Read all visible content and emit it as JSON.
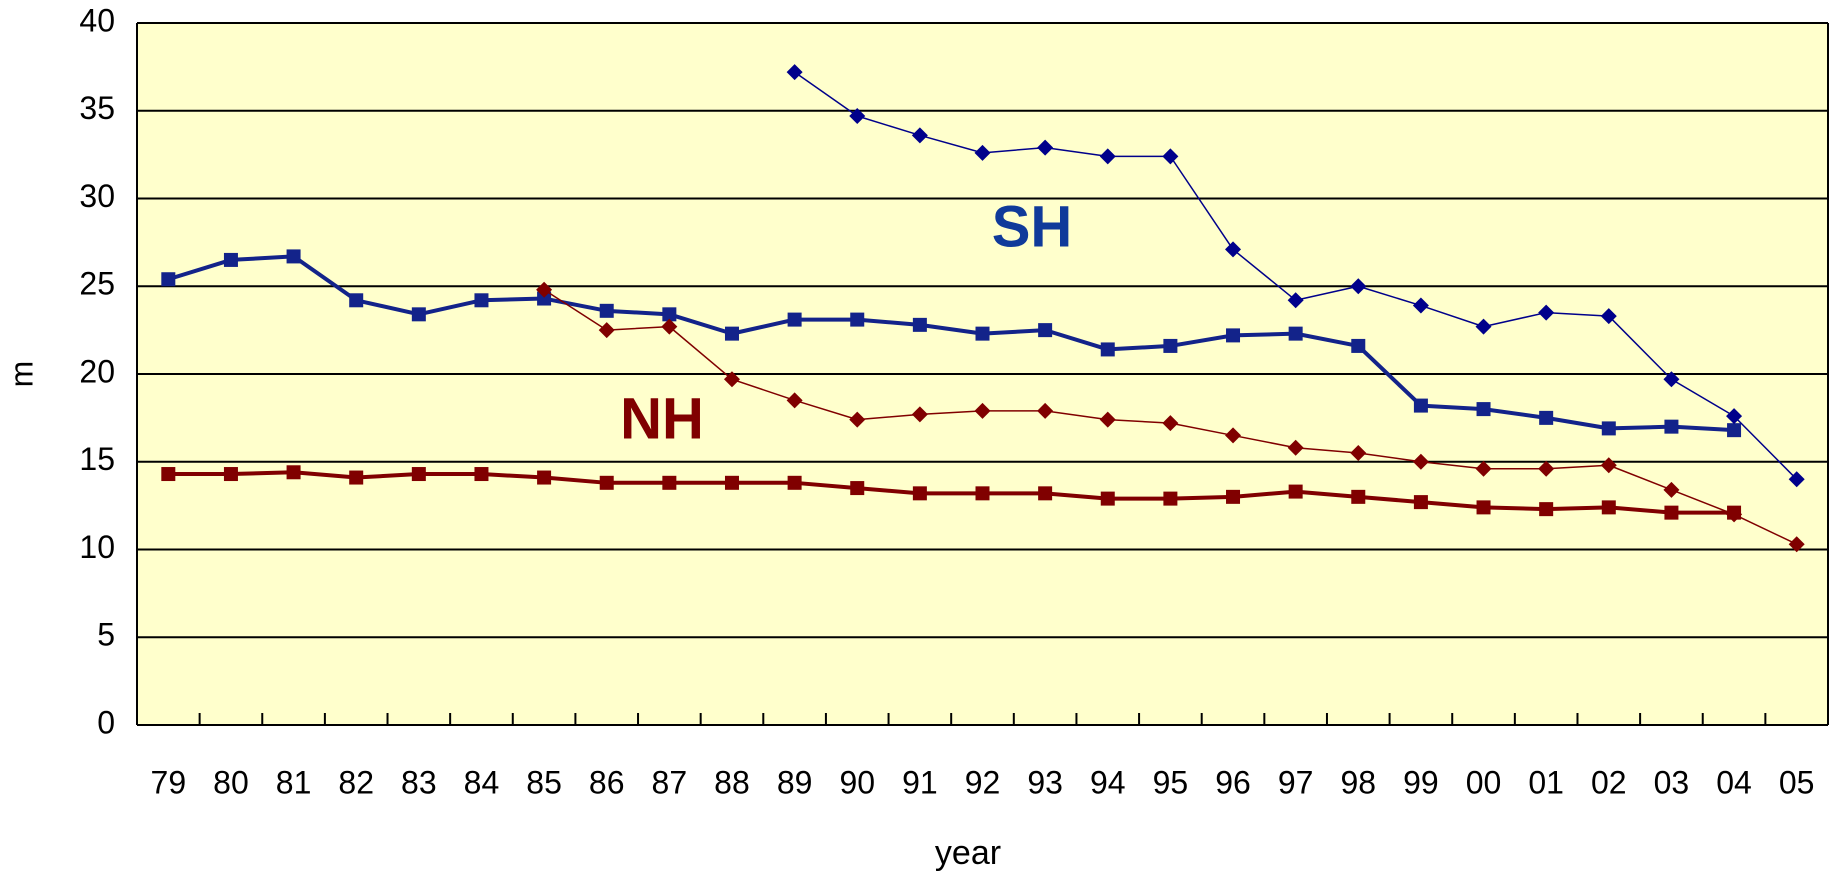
{
  "chart_data": {
    "type": "line",
    "x_label": "year",
    "y_label": "m",
    "categories": [
      "79",
      "80",
      "81",
      "82",
      "83",
      "84",
      "85",
      "86",
      "87",
      "88",
      "89",
      "90",
      "91",
      "92",
      "93",
      "94",
      "95",
      "96",
      "97",
      "98",
      "99",
      "00",
      "01",
      "02",
      "03",
      "04",
      "05"
    ],
    "ylim": [
      0,
      40
    ],
    "yticks": [
      0,
      5,
      10,
      15,
      20,
      25,
      30,
      35,
      40
    ],
    "grid": true,
    "background": "#ffffcc",
    "series": [
      {
        "color": "#13238a",
        "marker": "square",
        "line_width": 4,
        "values": [
          25.4,
          26.5,
          26.7,
          24.2,
          23.4,
          24.2,
          24.3,
          23.6,
          23.4,
          22.3,
          23.1,
          23.1,
          22.8,
          22.3,
          22.5,
          21.4,
          21.6,
          22.2,
          22.3,
          21.6,
          18.2,
          18.0,
          17.5,
          16.9,
          17.0,
          16.8,
          null
        ]
      },
      {
        "color": "#00008b",
        "marker": "diamond",
        "line_width": 1.5,
        "values": [
          null,
          null,
          null,
          null,
          null,
          null,
          null,
          null,
          null,
          null,
          37.2,
          34.7,
          33.6,
          32.6,
          32.9,
          32.4,
          32.4,
          27.1,
          24.2,
          25.0,
          23.9,
          22.7,
          23.5,
          23.3,
          19.7,
          17.6,
          14.0
        ]
      },
      {
        "color": "#800000",
        "marker": "diamond",
        "line_width": 1.5,
        "values": [
          null,
          null,
          null,
          null,
          null,
          null,
          24.8,
          22.5,
          22.7,
          19.7,
          18.5,
          17.4,
          17.7,
          17.9,
          17.9,
          17.4,
          17.2,
          16.5,
          15.8,
          15.5,
          15.0,
          14.6,
          14.6,
          14.8,
          13.4,
          12.0,
          10.3
        ]
      },
      {
        "color": "#800000",
        "marker": "square",
        "line_width": 4,
        "values": [
          14.3,
          14.3,
          14.4,
          14.1,
          14.3,
          14.3,
          14.1,
          13.8,
          13.8,
          13.8,
          13.8,
          13.5,
          13.2,
          13.2,
          13.2,
          12.9,
          12.9,
          13.0,
          13.3,
          13.0,
          12.7,
          12.4,
          12.3,
          12.4,
          12.1,
          12.1,
          null
        ]
      }
    ],
    "annotations": [
      {
        "text": "SH",
        "color": "#103a9a"
      },
      {
        "text": "NH",
        "color": "#800000"
      }
    ]
  }
}
